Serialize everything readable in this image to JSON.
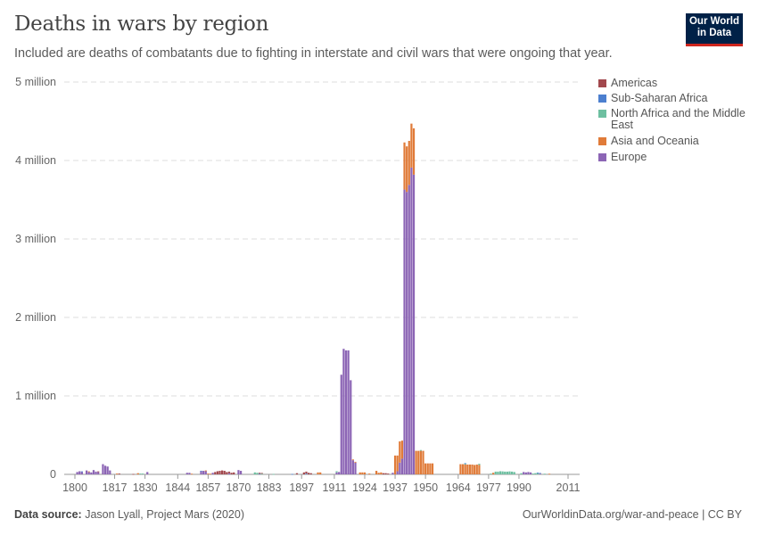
{
  "header": {
    "title": "Deaths in wars by region",
    "subtitle": "Included are deaths of combatants due to fighting in interstate and civil wars that were ongoing that year.",
    "logo": "Our World in Data"
  },
  "footer": {
    "source_label": "Data source:",
    "source": "Jason Lyall, Project Mars (2020)",
    "link": "OurWorldinData.org/war-and-peace | CC BY"
  },
  "chart_data": {
    "type": "bar",
    "stacked": true,
    "title": "Deaths in wars by region",
    "xlim": [
      1800,
      2011
    ],
    "ylim": [
      0,
      5000000
    ],
    "grid": "horizontal dashed",
    "legend": "right",
    "x_ticks": [
      "1800",
      "1817",
      "1830",
      "1844",
      "1857",
      "1870",
      "1883",
      "1897",
      "1911",
      "1924",
      "1937",
      "1950",
      "1964",
      "1977",
      "1990",
      "2011"
    ],
    "y_ticks": [
      {
        "v": 0,
        "label": "0"
      },
      {
        "v": 1000000,
        "label": "1 million"
      },
      {
        "v": 2000000,
        "label": "2 million"
      },
      {
        "v": 3000000,
        "label": "3 million"
      },
      {
        "v": 4000000,
        "label": "4 million"
      },
      {
        "v": 5000000,
        "label": "5 million"
      }
    ],
    "series": [
      {
        "name": "Americas",
        "color": "#a2484d",
        "values": {
          "1810": 8000,
          "1819": 10000,
          "1825": 5000,
          "1860": 30000,
          "1861": 40000,
          "1862": 45000,
          "1863": 50000,
          "1864": 45000,
          "1865": 30000,
          "1866": 20000,
          "1867": 20000,
          "1868": 25000,
          "1879": 12000,
          "1880": 10000,
          "1895": 15000,
          "1898": 25000,
          "1899": 25000,
          "1900": 20000,
          "1901": 15000,
          "1932": 15000,
          "1933": 15000,
          "1934": 10000
        }
      },
      {
        "name": "Sub-Saharan Africa",
        "color": "#4c7fcf",
        "values": {
          "1803": 8000,
          "1854": 6000,
          "1879": 8000,
          "1893": 5000,
          "1899": 10000,
          "1967": 8000,
          "1998": 8000,
          "1999": 8000
        }
      },
      {
        "name": "North Africa and the Middle East",
        "color": "#6dbfa0",
        "values": {
          "1828": 10000,
          "1829": 10000,
          "1877": 25000,
          "1878": 20000,
          "1880": 8000,
          "1885": 5000,
          "1912": 15000,
          "1948": 10000,
          "1967": 10000,
          "1973": 15000,
          "1978": 10000,
          "1980": 35000,
          "1981": 35000,
          "1982": 40000,
          "1983": 38000,
          "1984": 35000,
          "1985": 35000,
          "1986": 38000,
          "1987": 35000,
          "1988": 30000,
          "1991": 15000,
          "1996": 10000,
          "1997": 15000,
          "1998": 15000,
          "2001": 8000
        }
      },
      {
        "name": "Asia and Oceania",
        "color": "#e07b39",
        "values": {
          "1806": 8000,
          "1818": 10000,
          "1827": 15000,
          "1850": 8000,
          "1856": 10000,
          "1857": 10000,
          "1858": 8000,
          "1904": 25000,
          "1905": 25000,
          "1919": 10000,
          "1920": 10000,
          "1922": 25000,
          "1923": 25000,
          "1924": 25000,
          "1926": 10000,
          "1929": 45000,
          "1930": 20000,
          "1931": 25000,
          "1937": 240000,
          "1938": 200000,
          "1939": 270000,
          "1940": 230000,
          "1941": 600000,
          "1942": 580000,
          "1943": 560000,
          "1944": 560000,
          "1945": 590000,
          "1946": 300000,
          "1947": 300000,
          "1948": 300000,
          "1949": 300000,
          "1950": 140000,
          "1951": 140000,
          "1952": 140000,
          "1953": 140000,
          "1965": 130000,
          "1966": 130000,
          "1967": 125000,
          "1968": 125000,
          "1969": 125000,
          "1970": 125000,
          "1971": 120000,
          "1972": 125000,
          "1973": 120000,
          "1979": 20000,
          "2003": 8000
        }
      },
      {
        "name": "Europe",
        "color": "#8c65b5",
        "values": {
          "1801": 30000,
          "1802": 40000,
          "1803": 30000,
          "1805": 50000,
          "1806": 30000,
          "1807": 25000,
          "1808": 55000,
          "1809": 35000,
          "1810": 30000,
          "1812": 130000,
          "1813": 110000,
          "1814": 100000,
          "1815": 50000,
          "1831": 30000,
          "1848": 20000,
          "1849": 20000,
          "1854": 40000,
          "1855": 45000,
          "1856": 40000,
          "1859": 20000,
          "1866": 15000,
          "1870": 55000,
          "1871": 45000,
          "1912": 25000,
          "1913": 30000,
          "1914": 1270000,
          "1915": 1600000,
          "1916": 1580000,
          "1917": 1580000,
          "1918": 1200000,
          "1919": 180000,
          "1920": 150000,
          "1936": 20000,
          "1938": 40000,
          "1939": 150000,
          "1940": 200000,
          "1941": 3630000,
          "1942": 3600000,
          "1943": 3690000,
          "1944": 3910000,
          "1945": 3820000,
          "1992": 30000,
          "1993": 25000,
          "1994": 30000,
          "1995": 25000,
          "1999": 10000
        }
      }
    ]
  }
}
